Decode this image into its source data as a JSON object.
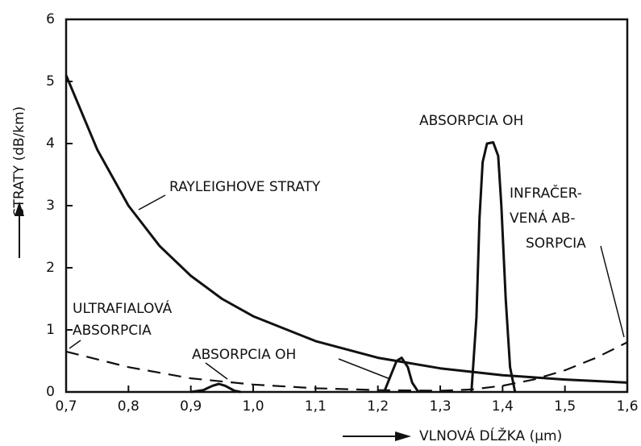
{
  "chart_data": {
    "type": "line",
    "ylabel": "STRATY (dB/km)",
    "xlabel": "VLNOVÁ DĹŽKA (µm)",
    "xlim": [
      0.7,
      1.6
    ],
    "xticks": [
      {
        "value": 0.7,
        "label": "0,7"
      },
      {
        "value": 0.8,
        "label": "0,8"
      },
      {
        "value": 0.9,
        "label": "0,9"
      },
      {
        "value": 1.0,
        "label": "1,0"
      },
      {
        "value": 1.1,
        "label": "1,1"
      },
      {
        "value": 1.2,
        "label": "1,2"
      },
      {
        "value": 1.3,
        "label": "1,3"
      },
      {
        "value": 1.4,
        "label": "1,4"
      },
      {
        "value": 1.5,
        "label": "1,5"
      },
      {
        "value": 1.6,
        "label": "1,6"
      }
    ],
    "ylim": [
      0,
      6
    ],
    "yticks": [
      0,
      1,
      2,
      3,
      4,
      5,
      6
    ],
    "annotations": [
      [
        "RAYLEIGHOVE STRATY"
      ],
      [
        "ABSORPCIA OH"
      ],
      [
        "INFRAČER-",
        "VENÁ AB-",
        "SORPCIA"
      ],
      [
        "ULTRAFIALOVÁ",
        "ABSORPCIA"
      ],
      [
        "ABSORPCIA OH"
      ]
    ],
    "series": [
      {
        "color": "#111111",
        "dash": false,
        "x": [
          0.7,
          0.75,
          0.8,
          0.85,
          0.9,
          0.95,
          1.0,
          1.1,
          1.2,
          1.3,
          1.4,
          1.5,
          1.6
        ],
        "values": [
          5.1,
          3.9,
          3.0,
          2.35,
          1.87,
          1.5,
          1.22,
          0.82,
          0.55,
          0.38,
          0.27,
          0.2,
          0.15
        ]
      },
      {
        "color": "#111111",
        "dash": true,
        "x": [
          0.7,
          0.8,
          0.9,
          1.0,
          1.1,
          1.2,
          1.3,
          1.35,
          1.4,
          1.45,
          1.5,
          1.55,
          1.6
        ],
        "values": [
          0.65,
          0.4,
          0.22,
          0.12,
          0.06,
          0.03,
          0.02,
          0.04,
          0.1,
          0.2,
          0.35,
          0.55,
          0.8
        ]
      },
      {
        "color": "#111111",
        "dash": false,
        "x": [
          0.9,
          0.92,
          0.935,
          0.945,
          0.955,
          0.97,
          0.98
        ],
        "values": [
          0,
          0.03,
          0.1,
          0.13,
          0.1,
          0.02,
          0
        ]
      },
      {
        "color": "#111111",
        "dash": false,
        "x": [
          1.21,
          1.22,
          1.23,
          1.238,
          1.248,
          1.255,
          1.265
        ],
        "values": [
          0,
          0.25,
          0.5,
          0.55,
          0.4,
          0.15,
          0
        ]
      },
      {
        "color": "#111111",
        "dash": false,
        "x": [
          1.35,
          1.358,
          1.363,
          1.368,
          1.375,
          1.385,
          1.393,
          1.398,
          1.405,
          1.412,
          1.42
        ],
        "values": [
          0,
          1.2,
          2.8,
          3.7,
          4.0,
          4.02,
          3.8,
          3.0,
          1.5,
          0.4,
          0
        ]
      }
    ]
  }
}
